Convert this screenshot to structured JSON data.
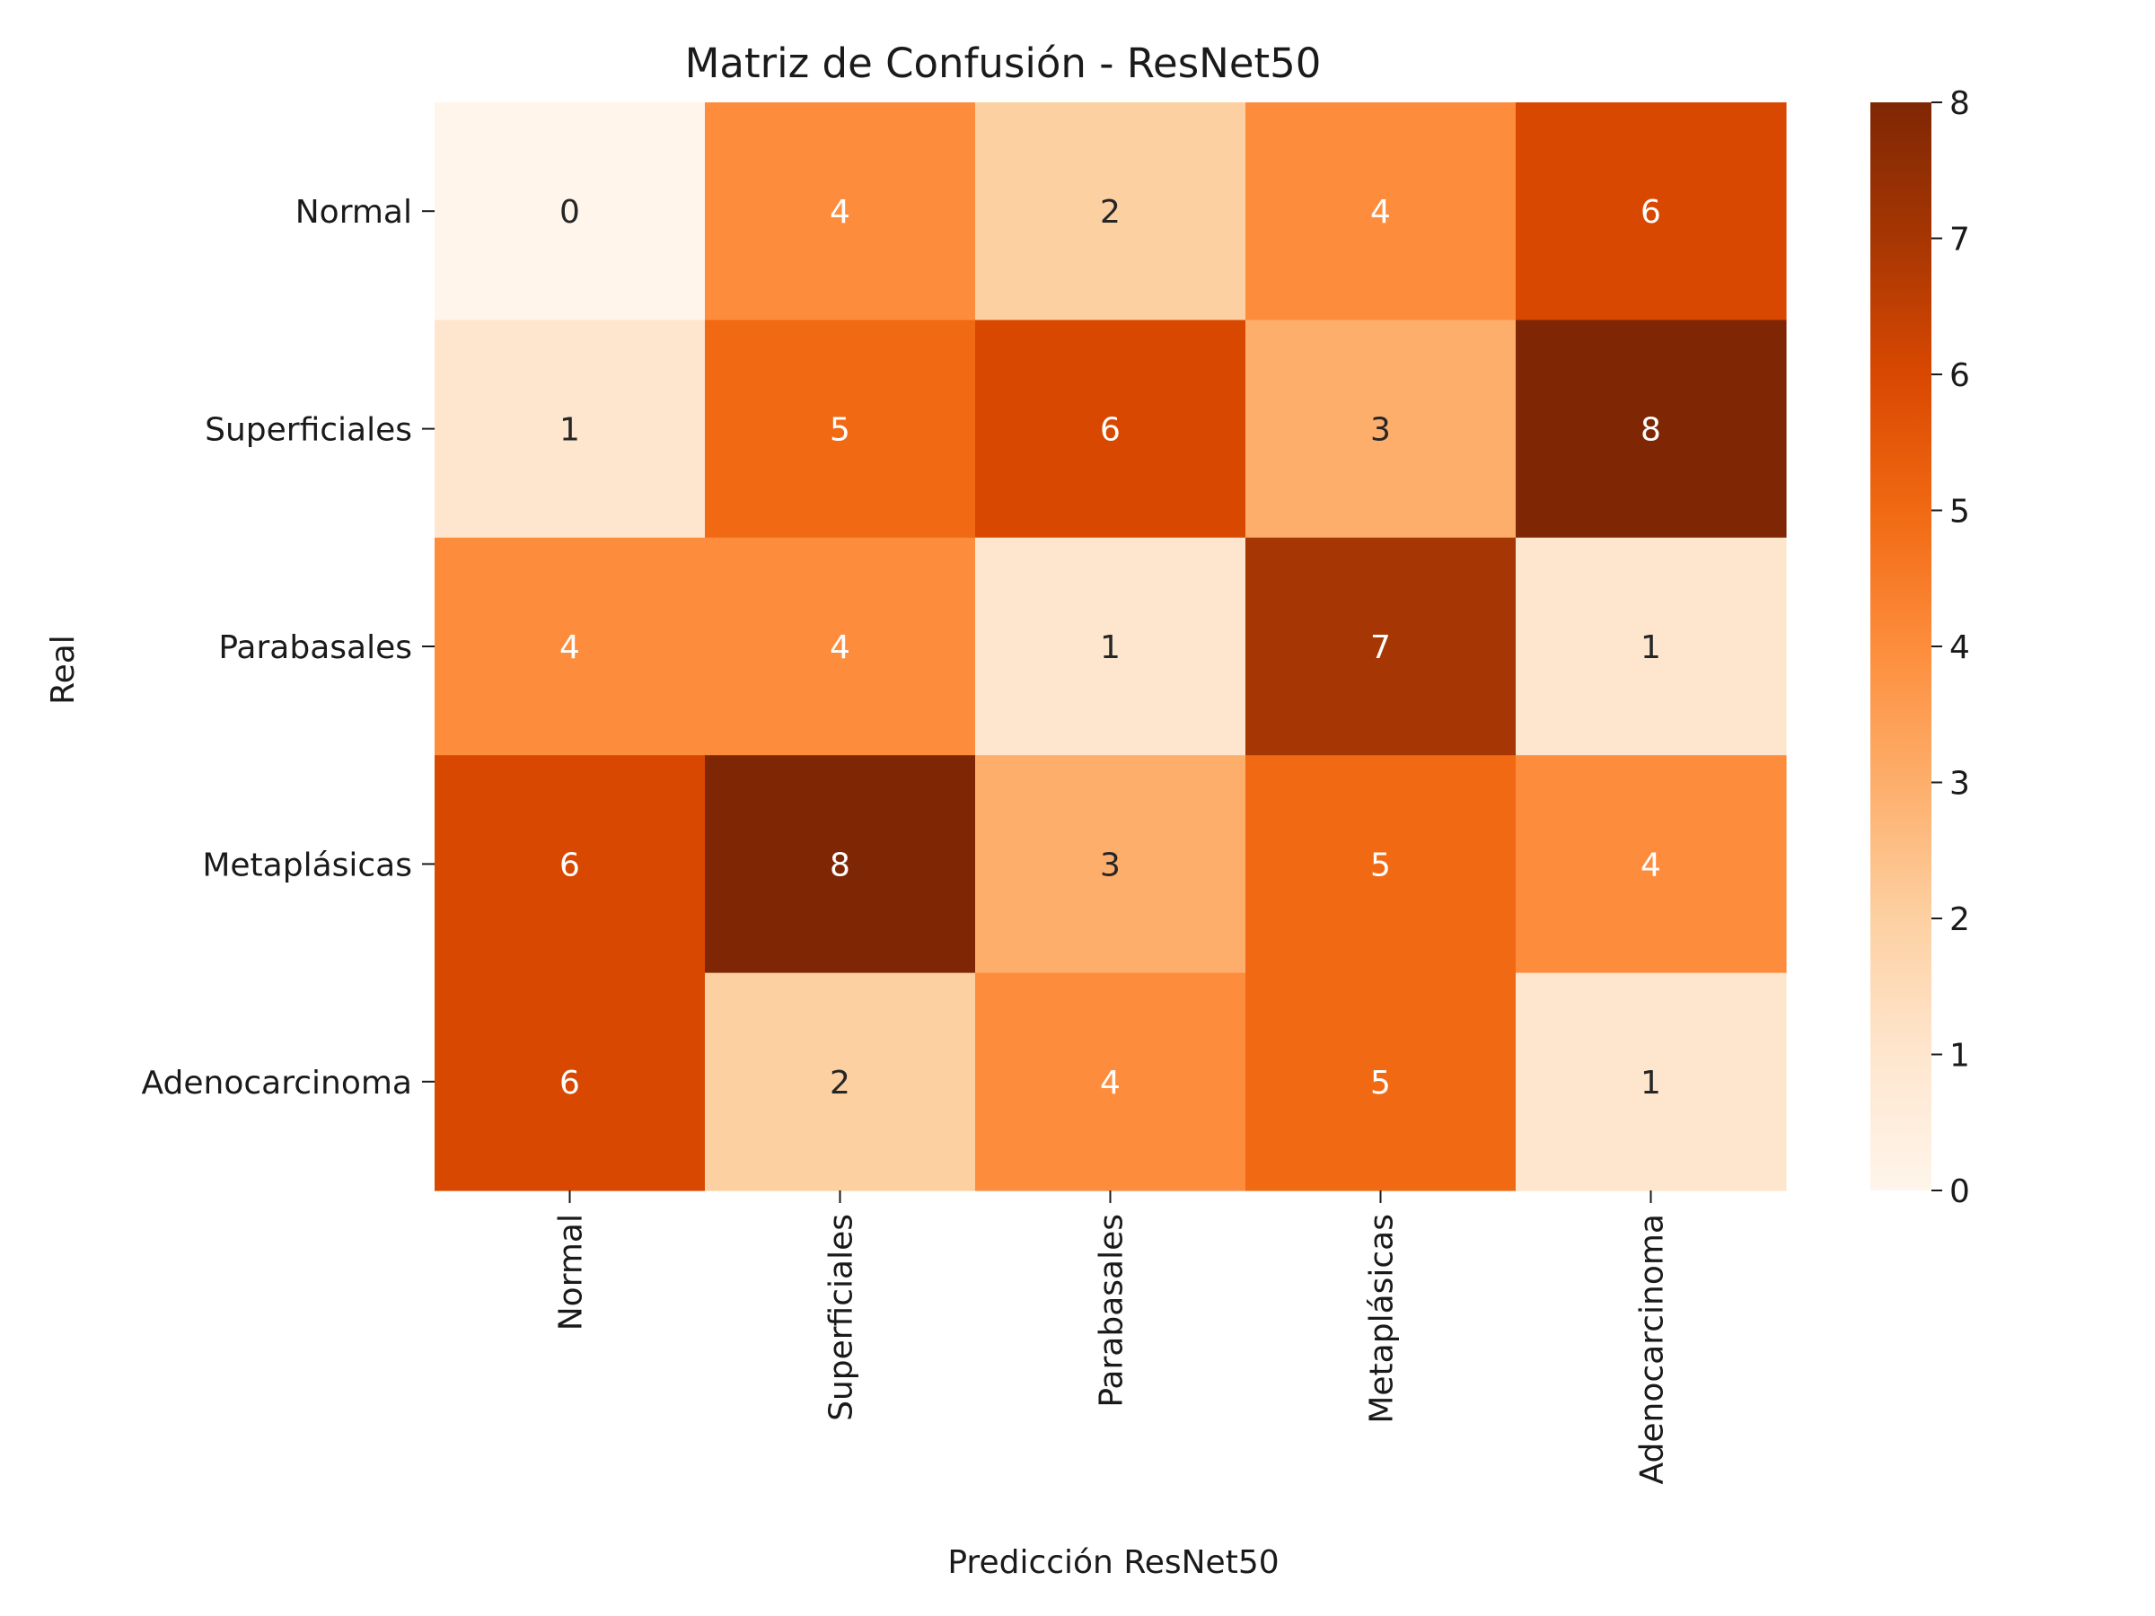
{
  "chart_data": {
    "type": "heatmap",
    "title": "Matriz de Confusión - ResNet50",
    "xlabel": "Predicción ResNet50",
    "ylabel": "Real",
    "x_categories": [
      "Normal",
      "Superficiales",
      "Parabasales",
      "Metaplásicas",
      "Adenocarcinoma"
    ],
    "y_categories": [
      "Normal",
      "Superficiales",
      "Parabasales",
      "Metaplásicas",
      "Adenocarcinoma"
    ],
    "values": [
      [
        0,
        4,
        2,
        4,
        6
      ],
      [
        1,
        5,
        6,
        3,
        8
      ],
      [
        4,
        4,
        1,
        7,
        1
      ],
      [
        6,
        8,
        3,
        5,
        4
      ],
      [
        6,
        2,
        4,
        5,
        1
      ]
    ],
    "colorbar": {
      "min": 0,
      "max": 8,
      "ticks": [
        "0",
        "1",
        "2",
        "3",
        "4",
        "5",
        "6",
        "7",
        "8"
      ],
      "colormap": "Oranges"
    },
    "colors": {
      "stops": [
        "#fff5eb",
        "#fee6ce",
        "#fdd0a2",
        "#fdae6b",
        "#fd8d3c",
        "#f16913",
        "#d94801",
        "#a63603",
        "#7f2704"
      ],
      "light_text": "#ffffff",
      "dark_text": "#262626"
    }
  }
}
